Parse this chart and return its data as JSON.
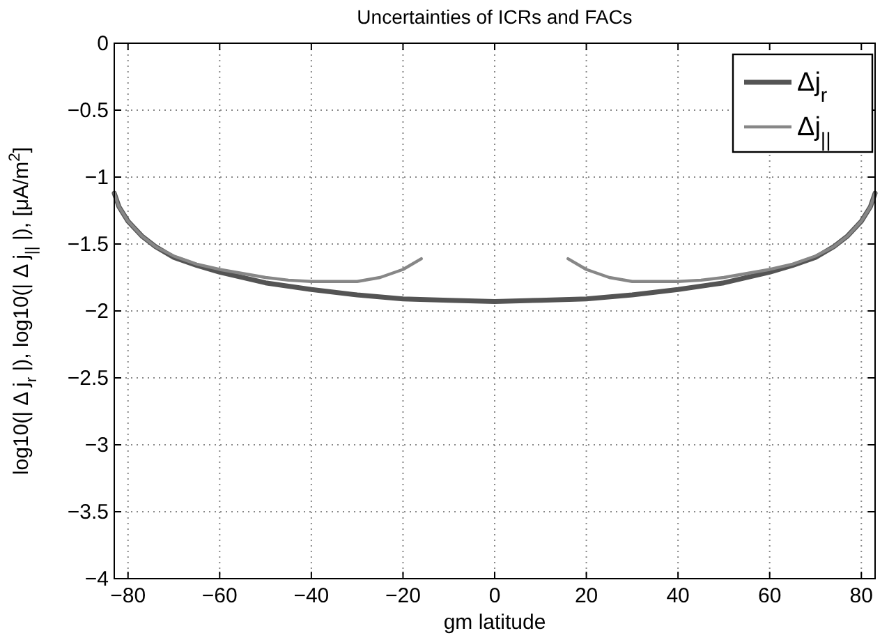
{
  "chart_data": {
    "type": "line",
    "title": "Uncertainties of ICRs and FACs",
    "xlabel": "gm latitude",
    "ylabel": "log10(| Δ j$_{r}$ |), log10(| Δ j$_{||}$ |), [μA/m$^{2}$]",
    "xlim": [
      -83,
      83
    ],
    "xticks": [
      -80,
      -60,
      -40,
      -20,
      0,
      20,
      40,
      60,
      80
    ],
    "ylim": [
      -4,
      0
    ],
    "yticks": [
      -4,
      -3.5,
      -3,
      -2.5,
      -2,
      -1.5,
      -1,
      -0.5,
      0
    ],
    "grid": true,
    "legend": "top right",
    "line_style": "solid",
    "series": [
      {
        "name": "Δj$_{r}$",
        "color": "#545454",
        "x": [
          -83,
          -82,
          -80,
          -77,
          -74,
          -70,
          -65,
          -60,
          -50,
          -40,
          -30,
          -20,
          -10,
          0,
          10,
          20,
          30,
          40,
          50,
          60,
          65,
          70,
          74,
          77,
          80,
          82,
          83
        ],
        "values": [
          -1.12,
          -1.22,
          -1.33,
          -1.44,
          -1.52,
          -1.6,
          -1.66,
          -1.71,
          -1.79,
          -1.84,
          -1.88,
          -1.91,
          -1.92,
          -1.93,
          -1.92,
          -1.91,
          -1.88,
          -1.84,
          -1.79,
          -1.71,
          -1.66,
          -1.6,
          -1.52,
          -1.44,
          -1.33,
          -1.22,
          -1.12
        ]
      },
      {
        "name": "Δj$_{||}$",
        "color": "#878787",
        "x": [
          -83,
          -82,
          -80,
          -77,
          -74,
          -70,
          -65,
          -60,
          -55,
          -50,
          -45,
          -40,
          -35,
          -30,
          -25,
          -20,
          -16,
          0,
          16,
          20,
          25,
          30,
          35,
          40,
          45,
          50,
          55,
          60,
          65,
          70,
          74,
          77,
          80,
          82,
          83
        ],
        "values": [
          -1.12,
          -1.22,
          -1.33,
          -1.44,
          -1.52,
          -1.59,
          -1.65,
          -1.69,
          -1.72,
          -1.75,
          -1.77,
          -1.78,
          -1.78,
          -1.78,
          -1.75,
          -1.69,
          -1.61,
          null,
          -1.61,
          -1.69,
          -1.75,
          -1.78,
          -1.78,
          -1.78,
          -1.77,
          -1.75,
          -1.72,
          -1.69,
          -1.65,
          -1.59,
          -1.52,
          -1.44,
          -1.33,
          -1.22,
          -1.12
        ]
      }
    ]
  }
}
